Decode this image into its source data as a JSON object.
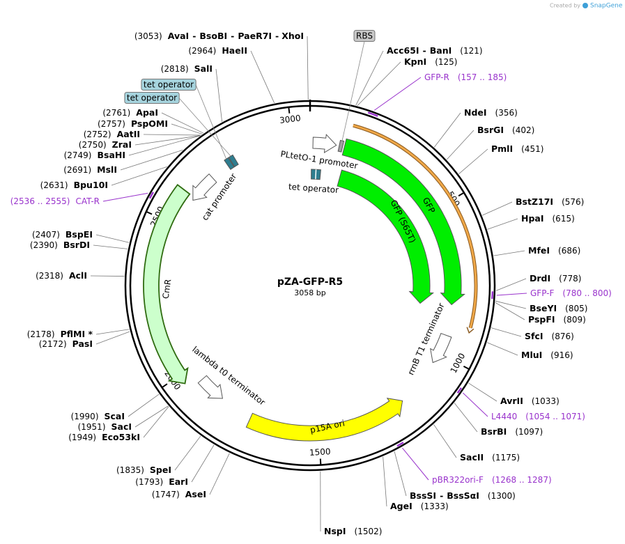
{
  "watermark": {
    "prefix": "Created by",
    "brand": "SnapGene"
  },
  "name": "pZA-GFP-R5",
  "size": {
    "value": 3058,
    "label": "3058 bp"
  },
  "ticks": [
    500,
    1000,
    1500,
    2000,
    2500,
    3000
  ],
  "separator": "-",
  "enzymes": [
    {
      "names": [
        "AvaI",
        "BsoBI",
        "PaeR7I",
        "XhoI"
      ],
      "site": {
        "value": 3053,
        "label": "(3053)"
      }
    },
    {
      "names": [
        "HaeII"
      ],
      "site": {
        "value": 2964,
        "label": "(2964)"
      }
    },
    {
      "names": [
        "SalI"
      ],
      "site": {
        "value": 2818,
        "label": "(2818)"
      }
    },
    {
      "names": [
        "ApaI"
      ],
      "site": {
        "value": 2761,
        "label": "(2761)"
      }
    },
    {
      "names": [
        "PspOMI"
      ],
      "site": {
        "value": 2757,
        "label": "(2757)"
      }
    },
    {
      "names": [
        "AatII"
      ],
      "site": {
        "value": 2752,
        "label": "(2752)"
      }
    },
    {
      "names": [
        "ZraI"
      ],
      "site": {
        "value": 2750,
        "label": "(2750)"
      }
    },
    {
      "names": [
        "BsaHI"
      ],
      "site": {
        "value": 2749,
        "label": "(2749)"
      }
    },
    {
      "names": [
        "MslI"
      ],
      "site": {
        "value": 2691,
        "label": "(2691)"
      }
    },
    {
      "names": [
        "Bpu10I"
      ],
      "site": {
        "value": 2631,
        "label": "(2631)"
      }
    },
    {
      "names": [
        "BspEI"
      ],
      "site": {
        "value": 2407,
        "label": "(2407)"
      }
    },
    {
      "names": [
        "BsrDI"
      ],
      "site": {
        "value": 2390,
        "label": "(2390)"
      }
    },
    {
      "names": [
        "AclI"
      ],
      "site": {
        "value": 2318,
        "label": "(2318)"
      }
    },
    {
      "names": [
        "PflMI *"
      ],
      "site": {
        "value": 2178,
        "label": "(2178)"
      }
    },
    {
      "names": [
        "PasI"
      ],
      "site": {
        "value": 2172,
        "label": "(2172)"
      }
    },
    {
      "names": [
        "ScaI"
      ],
      "site": {
        "value": 1990,
        "label": "(1990)"
      }
    },
    {
      "names": [
        "SacI"
      ],
      "site": {
        "value": 1951,
        "label": "(1951)"
      }
    },
    {
      "names": [
        "Eco53kI"
      ],
      "site": {
        "value": 1949,
        "label": "(1949)"
      }
    },
    {
      "names": [
        "SpeI"
      ],
      "site": {
        "value": 1835,
        "label": "(1835)"
      }
    },
    {
      "names": [
        "EarI"
      ],
      "site": {
        "value": 1793,
        "label": "(1793)"
      }
    },
    {
      "names": [
        "AseI"
      ],
      "site": {
        "value": 1747,
        "label": "(1747)"
      }
    },
    {
      "names": [
        "NspI"
      ],
      "site": {
        "value": 1502,
        "label": "(1502)"
      }
    },
    {
      "names": [
        "AgeI"
      ],
      "site": {
        "value": 1333,
        "label": "(1333)"
      }
    },
    {
      "names": [
        "BssSI",
        "BssSαI"
      ],
      "site": {
        "value": 1300,
        "label": "(1300)"
      }
    },
    {
      "names": [
        "SacII"
      ],
      "site": {
        "value": 1175,
        "label": "(1175)"
      }
    },
    {
      "names": [
        "BsrBI"
      ],
      "site": {
        "value": 1097,
        "label": "(1097)"
      }
    },
    {
      "names": [
        "AvrII"
      ],
      "site": {
        "value": 1033,
        "label": "(1033)"
      }
    },
    {
      "names": [
        "MluI"
      ],
      "site": {
        "value": 916,
        "label": "(916)"
      }
    },
    {
      "names": [
        "SfcI"
      ],
      "site": {
        "value": 876,
        "label": "(876)"
      }
    },
    {
      "names": [
        "PspFI"
      ],
      "site": {
        "value": 809,
        "label": "(809)"
      }
    },
    {
      "names": [
        "BseYI"
      ],
      "site": {
        "value": 805,
        "label": "(805)"
      }
    },
    {
      "names": [
        "DrdI"
      ],
      "site": {
        "value": 778,
        "label": "(778)"
      }
    },
    {
      "names": [
        "MfeI"
      ],
      "site": {
        "value": 686,
        "label": "(686)"
      }
    },
    {
      "names": [
        "HpaI"
      ],
      "site": {
        "value": 615,
        "label": "(615)"
      }
    },
    {
      "names": [
        "BstZ17I"
      ],
      "site": {
        "value": 576,
        "label": "(576)"
      }
    },
    {
      "names": [
        "PmlI"
      ],
      "site": {
        "value": 451,
        "label": "(451)"
      }
    },
    {
      "names": [
        "BsrGI"
      ],
      "site": {
        "value": 402,
        "label": "(402)"
      }
    },
    {
      "names": [
        "NdeI"
      ],
      "site": {
        "value": 356,
        "label": "(356)"
      }
    },
    {
      "names": [
        "Acc65I",
        "BanI"
      ],
      "site": {
        "value": 121,
        "label": "(121)"
      }
    },
    {
      "names": [
        "KpnI"
      ],
      "site": {
        "value": 125,
        "label": "(125)"
      }
    }
  ],
  "primer_color": "#9933cc",
  "primers": [
    {
      "name": "GFP-R",
      "range": {
        "start": 157,
        "end": 185,
        "label": "(157 .. 185)"
      }
    },
    {
      "name": "CAT-R",
      "range": {
        "start": 2536,
        "end": 2555,
        "label": "(2536 .. 2555)"
      }
    },
    {
      "name": "GFP-F",
      "range": {
        "start": 780,
        "end": 800,
        "label": "(780 .. 800)"
      }
    },
    {
      "name": "L4440",
      "range": {
        "start": 1054,
        "end": 1071,
        "label": "(1054 .. 1071)"
      }
    },
    {
      "name": "pBR322ori-F",
      "range": {
        "start": 1268,
        "end": 1287,
        "label": "(1268 .. 1287)"
      }
    }
  ],
  "features": [
    {
      "name": "GFP",
      "start": 118,
      "end": 830,
      "direction": 1,
      "color": "#00ee00"
    },
    {
      "name": "GFP (S65T)",
      "start": 130,
      "end": 842,
      "direction": 1,
      "color": "#00ee00"
    },
    {
      "start": 128,
      "end": 905,
      "direction": 1,
      "color": "#f0a848"
    },
    {
      "name": "PLtetO-1 promoter",
      "start": 10,
      "end": 90,
      "direction": 1,
      "color": "#ffffff"
    },
    {
      "name": "RBS",
      "start": 100,
      "end": 112,
      "direction": 0,
      "color": "#a0a0a0"
    },
    {
      "name": "tet operator",
      "start": 5,
      "end": 45,
      "direction": 0,
      "color": "#2e7d8f"
    },
    {
      "name": "tet operator",
      "start": 2766,
      "end": 2781,
      "direction": 0,
      "color": "#2e7d8f"
    },
    {
      "name": "tet operator",
      "start": 2783,
      "end": 2798,
      "direction": 0,
      "color": "#2e7d8f"
    },
    {
      "name": "cat promoter",
      "start": 2600,
      "end": 2700,
      "direction": -1,
      "color": "#ffffff"
    },
    {
      "name": "CmR",
      "start": 1970,
      "end": 2610,
      "direction": -1,
      "color": "#ccffcc"
    },
    {
      "name": "lambda t0 terminator",
      "start": 1850,
      "end": 1945,
      "direction": -1,
      "color": "#ffffff"
    },
    {
      "name": "p15A ori",
      "start": 1200,
      "end": 1735,
      "direction": -1,
      "color": "#ffff00"
    },
    {
      "name": "rrnB T1 terminator",
      "start": 935,
      "end": 1037,
      "direction": 1,
      "color": "#ffffff"
    }
  ]
}
